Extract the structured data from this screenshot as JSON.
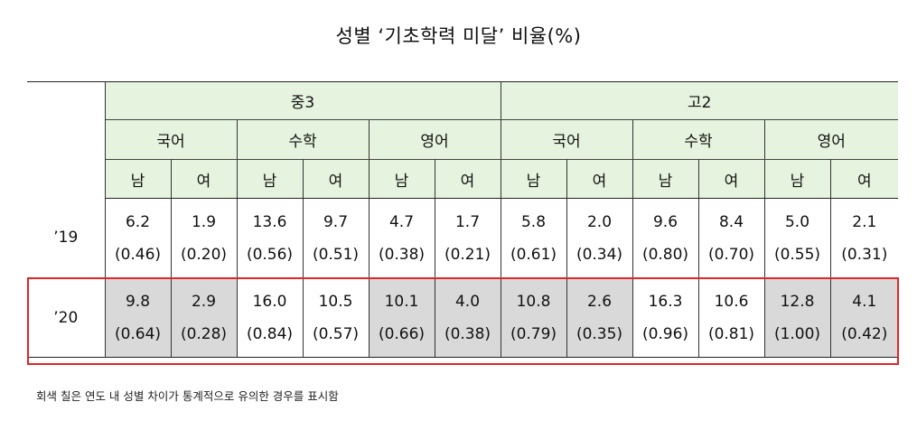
{
  "title": "성별 ‘기초학력 미달’ 비율(%)",
  "groups": [
    "중3",
    "고2"
  ],
  "subjects": [
    "국어",
    "수학",
    "영어",
    "국어",
    "수학",
    "영어"
  ],
  "genders": [
    "남",
    "여",
    "남",
    "여",
    "남",
    "여",
    "남",
    "여",
    "남",
    "여",
    "남",
    "여"
  ],
  "rows": [
    {
      "year": "’19",
      "values": [
        "6.2",
        "1.9",
        "13.6",
        "9.7",
        "4.7",
        "1.7",
        "5.8",
        "2.0",
        "9.6",
        "8.4",
        "5.0",
        "2.1"
      ],
      "se": [
        "(0.46)",
        "(0.20)",
        "(0.56)",
        "(0.51)",
        "(0.38)",
        "(0.21)",
        "(0.61)",
        "(0.34)",
        "(0.80)",
        "(0.70)",
        "(0.55)",
        "(0.31)"
      ]
    },
    {
      "year": "’20",
      "values": [
        "9.8",
        "2.9",
        "16.0",
        "10.5",
        "10.1",
        "4.0",
        "10.8",
        "2.6",
        "16.3",
        "10.6",
        "12.8",
        "4.1"
      ],
      "se": [
        "(0.64)",
        "(0.28)",
        "(0.84)",
        "(0.57)",
        "(0.66)",
        "(0.38)",
        "(0.79)",
        "(0.35)",
        "(0.96)",
        "(0.81)",
        "(1.00)",
        "(0.42)"
      ],
      "significant": [
        true,
        true,
        false,
        false,
        true,
        true,
        true,
        true,
        false,
        false,
        true,
        true
      ]
    }
  ],
  "note": "회색 칠은 연도 내 성별 차이가 통계적으로 유의한 경우를 표시함",
  "colors": {
    "header_bg": "#e6f3df",
    "significant_bg": "#d9d9d9",
    "highlight_border": "#e0262a"
  }
}
